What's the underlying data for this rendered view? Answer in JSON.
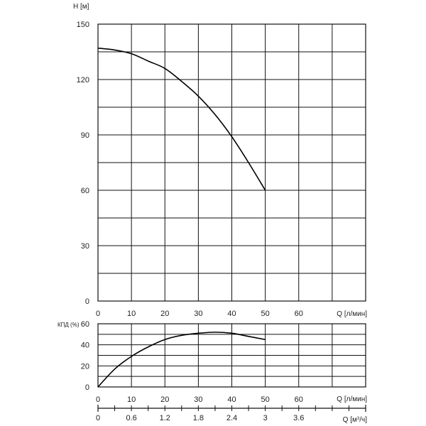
{
  "chart_data": [
    {
      "type": "line",
      "title": "",
      "ylabel": "H [м]",
      "xlabel": "Q [л/мин]",
      "xlim": [
        0,
        80
      ],
      "ylim": [
        0,
        150
      ],
      "x_ticks": [
        0,
        10,
        20,
        30,
        40,
        50,
        60
      ],
      "y_ticks": [
        0,
        30,
        60,
        90,
        120,
        150
      ],
      "grid": true,
      "series": [
        {
          "x": [
            0,
            5,
            10,
            15,
            20,
            25,
            30,
            35,
            40,
            45,
            50
          ],
          "y": [
            137,
            136,
            134,
            130,
            126,
            119,
            111,
            101,
            89,
            75,
            60
          ]
        }
      ]
    },
    {
      "type": "line",
      "title": "",
      "ylabel": "КПД (%)",
      "xlabel": "Q [л/мин]",
      "xlim": [
        0,
        80
      ],
      "ylim": [
        0,
        60
      ],
      "x_ticks": [
        0,
        10,
        20,
        30,
        40,
        50,
        60
      ],
      "y_ticks": [
        0,
        20,
        40,
        60
      ],
      "grid": true,
      "secondary_x_axis": {
        "label": "Q [м",
        "label_sup": "3",
        "label_suffix": "/ч]",
        "ticks": [
          0,
          0.6,
          1.2,
          1.8,
          2.4,
          3,
          3.6
        ],
        "tick_labels": [
          "0",
          "0.6",
          "1.2",
          "1.8",
          "2.4",
          "3",
          "3.6"
        ],
        "lim": [
          0,
          4.8
        ]
      },
      "series": [
        {
          "x": [
            0,
            5,
            10,
            15,
            20,
            25,
            30,
            35,
            40,
            45,
            50
          ],
          "y": [
            0,
            17,
            29,
            38,
            45,
            49,
            51,
            52,
            51,
            48,
            45
          ]
        }
      ]
    }
  ]
}
